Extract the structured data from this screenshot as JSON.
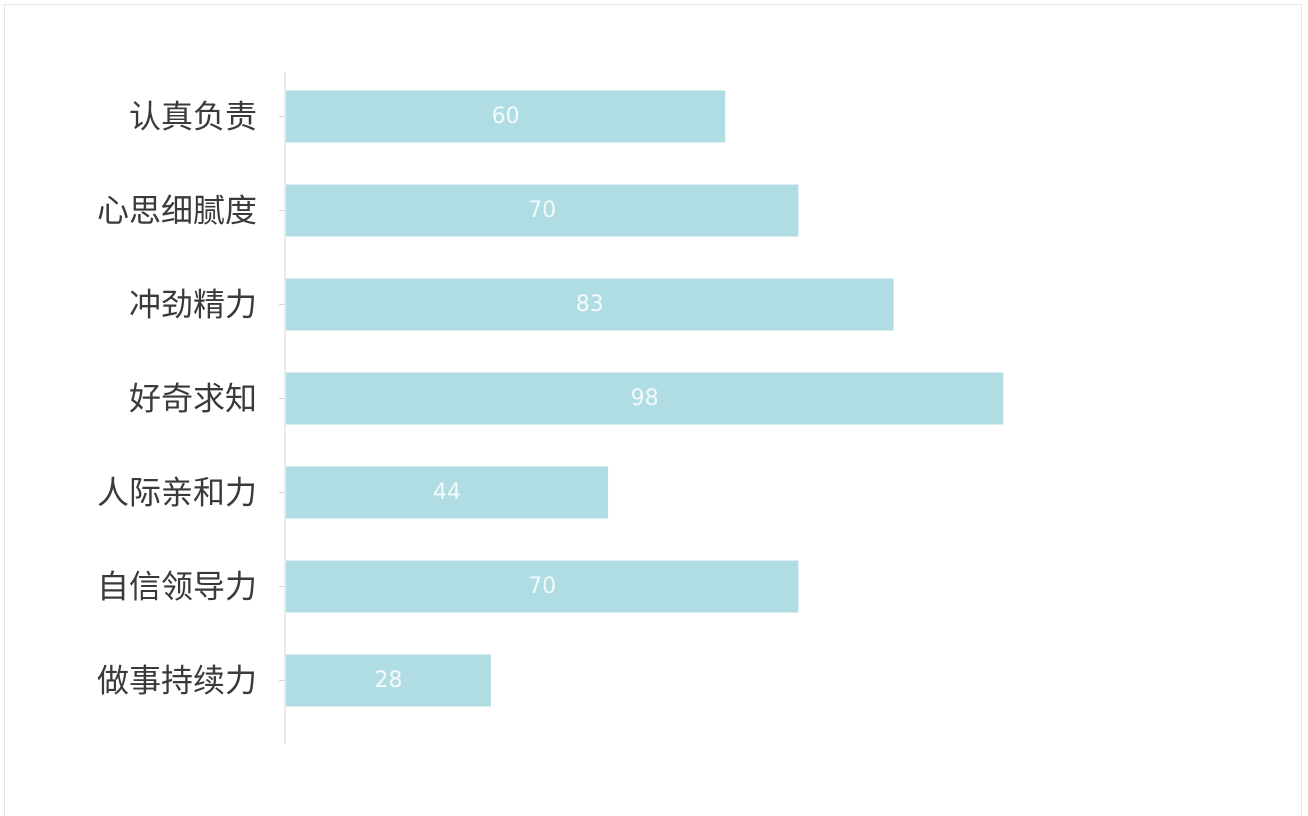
{
  "chart_data": {
    "type": "bar",
    "orientation": "horizontal",
    "categories": [
      "认真负责",
      "心思细腻度",
      "冲劲精力",
      "好奇求知",
      "人际亲和力",
      "自信领导力",
      "做事持续力"
    ],
    "values": [
      60,
      70,
      83,
      98,
      44,
      70,
      28
    ],
    "xlim": [
      0,
      100
    ],
    "bar_color": "#b0dde3",
    "axis_color": "#d6d6d6",
    "grid": false,
    "legend": "none",
    "data_labels": "inside-center"
  }
}
